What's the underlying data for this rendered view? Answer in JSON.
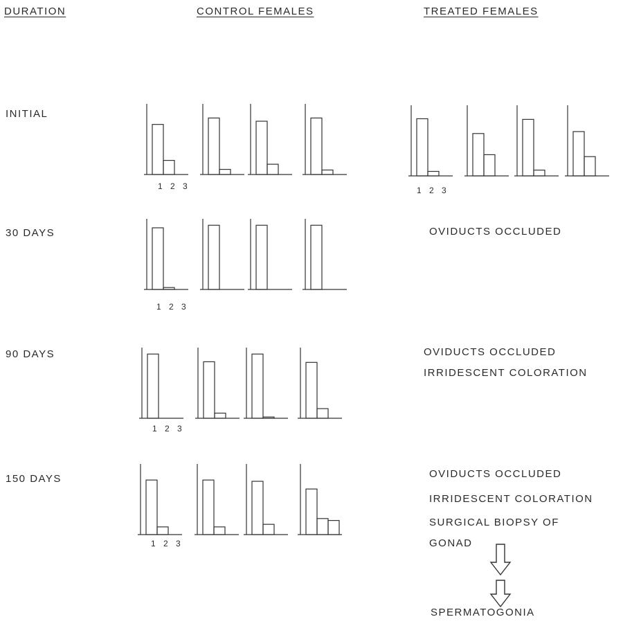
{
  "headers": {
    "duration": "DURATION",
    "control": "CONTROL FEMALES",
    "treated": "TREATED FEMALES"
  },
  "rows": [
    {
      "label": "INITIAL"
    },
    {
      "label": "30 DAYS"
    },
    {
      "label": "90 DAYS"
    },
    {
      "label": "150 DAYS"
    }
  ],
  "tick_labels": "1 2 3",
  "notes": {
    "thirty": [
      "OVIDUCTS OCCLUDED"
    ],
    "ninety": [
      "OVIDUCTS OCCLUDED",
      "IRRIDESCENT COLORATION"
    ],
    "onefifty": [
      "OVIDUCTS OCCLUDED",
      "IRRIDESCENT COLORATION",
      "SURGICAL BIOPSY OF",
      "GONAD"
    ],
    "result": "SPERMATOGONIA"
  },
  "chart_data": {
    "type": "bar",
    "categories": [
      "1",
      "2",
      "3"
    ],
    "ylim": [
      0,
      110
    ],
    "groups": [
      {
        "row": "INITIAL",
        "condition": "CONTROL FEMALES",
        "bars": [
          [
            78,
            22,
            0
          ],
          [
            88,
            8,
            0
          ],
          [
            83,
            16,
            0
          ],
          [
            88,
            7,
            0
          ]
        ]
      },
      {
        "row": "INITIAL",
        "condition": "TREATED FEMALES",
        "bars": [
          [
            89,
            7,
            0
          ],
          [
            66,
            33,
            0
          ],
          [
            88,
            9,
            0
          ],
          [
            69,
            30,
            0
          ]
        ]
      },
      {
        "row": "30 DAYS",
        "condition": "CONTROL FEMALES",
        "bars": [
          [
            96,
            3,
            0
          ],
          [
            100,
            0,
            0
          ],
          [
            100,
            0,
            0
          ],
          [
            100,
            0,
            0
          ]
        ]
      },
      {
        "row": "90 DAYS",
        "condition": "CONTROL FEMALES",
        "bars": [
          [
            100,
            0,
            0
          ],
          [
            88,
            8,
            0
          ],
          [
            100,
            2,
            0
          ],
          [
            87,
            15,
            0
          ]
        ]
      },
      {
        "row": "150 DAYS",
        "condition": "CONTROL FEMALES",
        "bars": [
          [
            85,
            12,
            0
          ],
          [
            85,
            12,
            0
          ],
          [
            83,
            16,
            0
          ],
          [
            71,
            25,
            22
          ]
        ]
      }
    ]
  }
}
